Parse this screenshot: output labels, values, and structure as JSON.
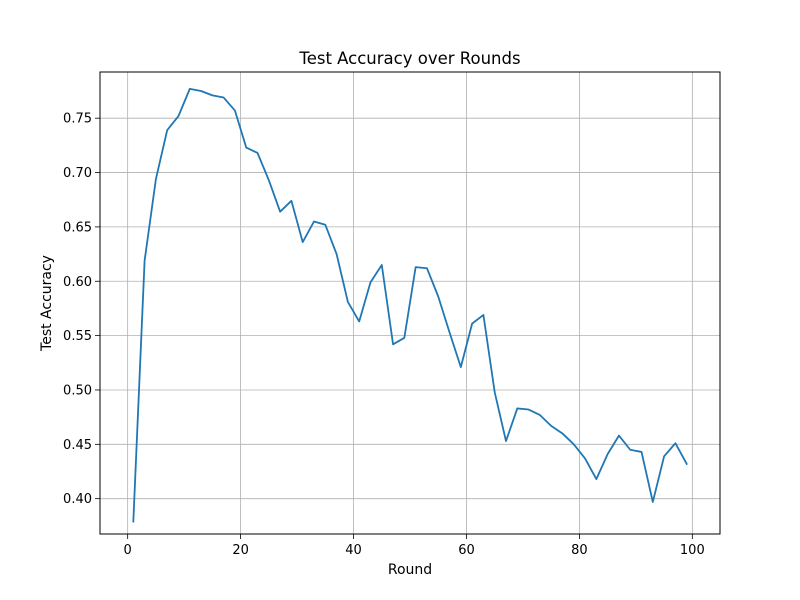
{
  "chart_data": {
    "type": "line",
    "title": "Test Accuracy over Rounds",
    "xlabel": "Round",
    "ylabel": "Test Accuracy",
    "xlim": [
      -4.9,
      104.9
    ],
    "ylim": [
      0.3675,
      0.7925
    ],
    "xticks": [
      0,
      20,
      40,
      60,
      80,
      100
    ],
    "yticks": [
      0.4,
      0.45,
      0.5,
      0.55,
      0.6,
      0.65,
      0.7,
      0.75
    ],
    "xtick_labels": [
      "0",
      "20",
      "40",
      "60",
      "80",
      "100"
    ],
    "ytick_labels": [
      "0.40",
      "0.45",
      "0.50",
      "0.55",
      "0.60",
      "0.65",
      "0.70",
      "0.75"
    ],
    "grid": true,
    "series": [
      {
        "color": "#1f77b4",
        "x": [
          1,
          3,
          5,
          7,
          9,
          11,
          13,
          15,
          17,
          19,
          21,
          23,
          25,
          27,
          29,
          31,
          33,
          35,
          37,
          39,
          41,
          43,
          45,
          47,
          49,
          51,
          53,
          55,
          57,
          59,
          61,
          63,
          65,
          67,
          69,
          71,
          73,
          75,
          77,
          79,
          81,
          83,
          85,
          87,
          89,
          91,
          93,
          95,
          97,
          99
        ],
        "y": [
          0.379,
          0.619,
          0.694,
          0.739,
          0.752,
          0.777,
          0.775,
          0.771,
          0.769,
          0.757,
          0.723,
          0.718,
          0.693,
          0.664,
          0.674,
          0.636,
          0.655,
          0.652,
          0.625,
          0.581,
          0.563,
          0.599,
          0.615,
          0.542,
          0.548,
          0.613,
          0.612,
          0.586,
          0.553,
          0.521,
          0.561,
          0.569,
          0.498,
          0.453,
          0.483,
          0.482,
          0.477,
          0.467,
          0.46,
          0.45,
          0.437,
          0.418,
          0.441,
          0.458,
          0.445,
          0.443,
          0.397,
          0.439,
          0.451,
          0.432
        ]
      }
    ]
  }
}
